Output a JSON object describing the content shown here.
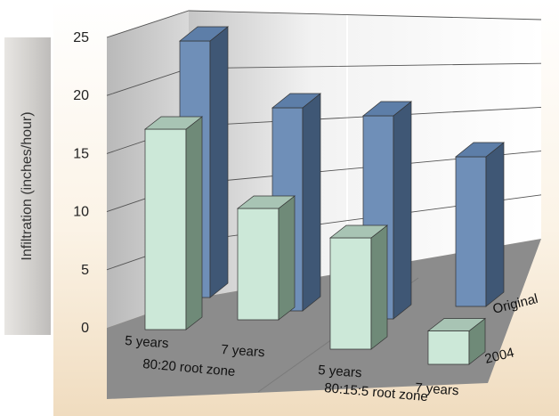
{
  "chart_data": {
    "type": "bar",
    "ylabel": "Infiltration (inches/hour)",
    "ylim": [
      0,
      25
    ],
    "yticks": [
      "0",
      "5",
      "10",
      "15",
      "20",
      "25"
    ],
    "categories": [
      "5 years",
      "7 years",
      "5 years",
      "7 years"
    ],
    "groups": [
      "80:20 root zone",
      "80:15:5 root zone"
    ],
    "series": [
      {
        "name": "2004",
        "values": [
          18,
          10,
          10,
          3
        ]
      },
      {
        "name": "Original",
        "values": [
          24,
          19,
          19,
          14
        ]
      }
    ],
    "grid": true,
    "colors": {
      "2004_front": "#cce8d8",
      "2004_side": "#6f8a78",
      "2004_top": "#a8c4b4",
      "original_front": "#6f8fb8",
      "original_side": "#3f5775",
      "original_top": "#5d7ea8",
      "floor": "#8c8c8c",
      "wall": "#d6d6d6"
    }
  }
}
